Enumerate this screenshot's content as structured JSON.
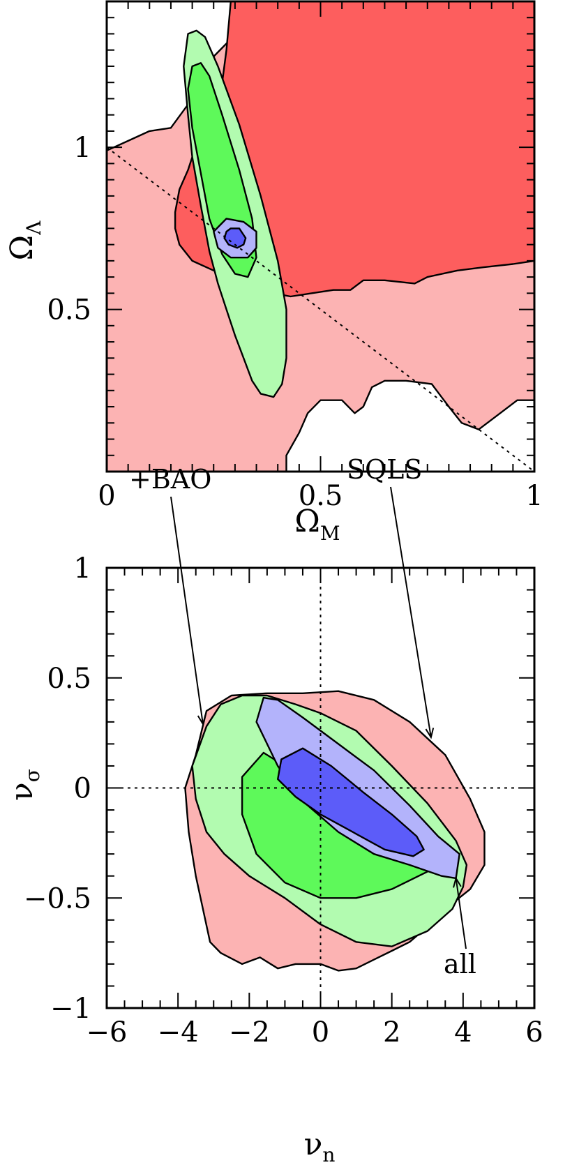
{
  "colors": {
    "red_light": "#fcb3b3",
    "red_dark": "#fd5e5e",
    "green_light": "#b2fbb0",
    "green_dark": "#5ef95a",
    "blue_light": "#b3b3fb",
    "blue_dark": "#5c5cf9"
  },
  "chart_data": [
    {
      "type": "contour",
      "xlabel": "Ω",
      "xlabel_sub": "M",
      "ylabel": "Ω",
      "ylabel_sub": "Λ",
      "xlim": [
        0,
        1
      ],
      "ylim": [
        0,
        1.45
      ],
      "xticks": [
        0,
        0.5,
        1
      ],
      "xtick_labels": [
        "0",
        "0.5",
        "1"
      ],
      "yticks": [
        0.5,
        1
      ],
      "ytick_labels": [
        "0.5",
        "1"
      ],
      "reference_lines": [
        {
          "style": "dotted",
          "from": [
            0,
            1
          ],
          "to": [
            1,
            0
          ]
        }
      ],
      "series": [
        {
          "color": "#fcb3b3",
          "level": "outer",
          "points": [
            [
              0.0,
              0.0
            ],
            [
              0.42,
              0.0
            ],
            [
              0.42,
              0.05
            ],
            [
              0.45,
              0.12
            ],
            [
              0.47,
              0.18
            ],
            [
              0.5,
              0.22
            ],
            [
              0.55,
              0.22
            ],
            [
              0.58,
              0.18
            ],
            [
              0.6,
              0.2
            ],
            [
              0.62,
              0.26
            ],
            [
              0.65,
              0.28
            ],
            [
              0.7,
              0.28
            ],
            [
              0.76,
              0.27
            ],
            [
              0.8,
              0.2
            ],
            [
              0.83,
              0.15
            ],
            [
              0.87,
              0.13
            ],
            [
              0.92,
              0.18
            ],
            [
              0.96,
              0.22
            ],
            [
              1.0,
              0.22
            ],
            [
              1.0,
              1.45
            ],
            [
              0.45,
              1.45
            ],
            [
              0.43,
              1.43
            ],
            [
              0.35,
              1.4
            ],
            [
              0.28,
              1.32
            ],
            [
              0.25,
              1.28
            ],
            [
              0.22,
              1.22
            ],
            [
              0.2,
              1.15
            ],
            [
              0.15,
              1.06
            ],
            [
              0.1,
              1.05
            ],
            [
              0.05,
              1.02
            ],
            [
              0.0,
              0.99
            ]
          ]
        },
        {
          "color": "#fd5e5e",
          "level": "inner",
          "points": [
            [
              0.29,
              1.45
            ],
            [
              1.0,
              1.45
            ],
            [
              1.0,
              0.65
            ],
            [
              0.95,
              0.64
            ],
            [
              0.88,
              0.63
            ],
            [
              0.82,
              0.62
            ],
            [
              0.75,
              0.6
            ],
            [
              0.72,
              0.58
            ],
            [
              0.65,
              0.59
            ],
            [
              0.6,
              0.59
            ],
            [
              0.57,
              0.56
            ],
            [
              0.53,
              0.56
            ],
            [
              0.48,
              0.55
            ],
            [
              0.43,
              0.54
            ],
            [
              0.39,
              0.55
            ],
            [
              0.35,
              0.57
            ],
            [
              0.3,
              0.6
            ],
            [
              0.25,
              0.62
            ],
            [
              0.2,
              0.65
            ],
            [
              0.17,
              0.7
            ],
            [
              0.16,
              0.75
            ],
            [
              0.16,
              0.8
            ],
            [
              0.17,
              0.87
            ],
            [
              0.19,
              0.93
            ],
            [
              0.2,
              0.97
            ],
            [
              0.22,
              1.0
            ],
            [
              0.25,
              1.1
            ],
            [
              0.27,
              1.2
            ],
            [
              0.28,
              1.3
            ]
          ]
        },
        {
          "color": "#b2fbb0",
          "level": "outer",
          "points": [
            [
              0.19,
              1.35
            ],
            [
              0.21,
              1.36
            ],
            [
              0.23,
              1.34
            ],
            [
              0.26,
              1.25
            ],
            [
              0.31,
              1.07
            ],
            [
              0.36,
              0.85
            ],
            [
              0.4,
              0.65
            ],
            [
              0.42,
              0.5
            ],
            [
              0.42,
              0.35
            ],
            [
              0.41,
              0.27
            ],
            [
              0.39,
              0.23
            ],
            [
              0.36,
              0.24
            ],
            [
              0.34,
              0.28
            ],
            [
              0.32,
              0.35
            ],
            [
              0.3,
              0.42
            ],
            [
              0.28,
              0.5
            ],
            [
              0.26,
              0.58
            ],
            [
              0.24,
              0.68
            ],
            [
              0.22,
              0.82
            ],
            [
              0.2,
              0.97
            ],
            [
              0.19,
              1.1
            ],
            [
              0.18,
              1.25
            ]
          ]
        },
        {
          "color": "#5ef95a",
          "level": "inner",
          "points": [
            [
              0.2,
              1.25
            ],
            [
              0.22,
              1.26
            ],
            [
              0.24,
              1.22
            ],
            [
              0.27,
              1.1
            ],
            [
              0.31,
              0.93
            ],
            [
              0.34,
              0.78
            ],
            [
              0.35,
              0.66
            ],
            [
              0.33,
              0.6
            ],
            [
              0.3,
              0.61
            ],
            [
              0.27,
              0.67
            ],
            [
              0.24,
              0.78
            ],
            [
              0.22,
              0.92
            ],
            [
              0.2,
              1.06
            ],
            [
              0.19,
              1.18
            ]
          ]
        },
        {
          "color": "#b3b3fb",
          "level": "outer",
          "points": [
            [
              0.28,
              0.78
            ],
            [
              0.32,
              0.77
            ],
            [
              0.35,
              0.74
            ],
            [
              0.35,
              0.69
            ],
            [
              0.33,
              0.66
            ],
            [
              0.29,
              0.66
            ],
            [
              0.26,
              0.69
            ],
            [
              0.25,
              0.74
            ]
          ]
        },
        {
          "color": "#5c5cf9",
          "level": "inner",
          "points": [
            [
              0.29,
              0.75
            ],
            [
              0.31,
              0.75
            ],
            [
              0.325,
              0.72
            ],
            [
              0.32,
              0.7
            ],
            [
              0.305,
              0.69
            ],
            [
              0.285,
              0.7
            ],
            [
              0.275,
              0.72
            ],
            [
              0.28,
              0.74
            ]
          ]
        }
      ]
    },
    {
      "type": "contour",
      "xlabel": "ν",
      "xlabel_sub": "n",
      "ylabel": "ν",
      "ylabel_sub": "σ",
      "xlim": [
        -6,
        6
      ],
      "ylim": [
        -1,
        1
      ],
      "xticks": [
        -6,
        -4,
        -2,
        0,
        2,
        4,
        6
      ],
      "xtick_labels": [
        "−6",
        "−4",
        "−2",
        "0",
        "2",
        "4",
        "6"
      ],
      "yticks": [
        -1,
        -0.5,
        0,
        0.5,
        1
      ],
      "ytick_labels": [
        "−1",
        "−0.5",
        "0",
        "0.5",
        "1"
      ],
      "reference_lines": [
        {
          "style": "dotted",
          "from": [
            0,
            -1
          ],
          "to": [
            0,
            1
          ]
        },
        {
          "style": "dotted",
          "from": [
            -6,
            0
          ],
          "to": [
            6,
            0
          ]
        }
      ],
      "annotations": [
        {
          "text": "+BAO",
          "arrow_to": [
            -3.3,
            0.29
          ]
        },
        {
          "text": "SQLS",
          "arrow_to": [
            3.1,
            0.23
          ]
        },
        {
          "text": "all",
          "arrow_to": [
            3.8,
            -0.41
          ]
        }
      ],
      "series": [
        {
          "name": "SQLS",
          "color": "#fcb3b3",
          "level": "outer",
          "points": [
            [
              -3.5,
              0.15
            ],
            [
              -3.2,
              0.35
            ],
            [
              -2.5,
              0.42
            ],
            [
              -1.5,
              0.43
            ],
            [
              -0.5,
              0.43
            ],
            [
              0.5,
              0.44
            ],
            [
              1.5,
              0.4
            ],
            [
              2.5,
              0.3
            ],
            [
              3.5,
              0.15
            ],
            [
              4.2,
              -0.05
            ],
            [
              4.6,
              -0.2
            ],
            [
              4.6,
              -0.35
            ],
            [
              4.2,
              -0.46
            ],
            [
              3.5,
              -0.55
            ],
            [
              3.0,
              -0.63
            ],
            [
              2.5,
              -0.7
            ],
            [
              2.0,
              -0.74
            ],
            [
              1.5,
              -0.78
            ],
            [
              1.0,
              -0.82
            ],
            [
              0.5,
              -0.83
            ],
            [
              0.0,
              -0.8
            ],
            [
              -0.7,
              -0.8
            ],
            [
              -1.2,
              -0.82
            ],
            [
              -1.7,
              -0.77
            ],
            [
              -2.2,
              -0.8
            ],
            [
              -2.8,
              -0.75
            ],
            [
              -3.1,
              -0.7
            ],
            [
              -3.3,
              -0.55
            ],
            [
              -3.5,
              -0.4
            ],
            [
              -3.7,
              -0.2
            ],
            [
              -3.8,
              0.0
            ]
          ]
        },
        {
          "name": "+BAO",
          "color": "#b2fbb0",
          "level": "outer",
          "points": [
            [
              -3.2,
              0.28
            ],
            [
              -2.8,
              0.38
            ],
            [
              -2.2,
              0.42
            ],
            [
              -1.5,
              0.42
            ],
            [
              -0.7,
              0.38
            ],
            [
              0.0,
              0.34
            ],
            [
              1.0,
              0.26
            ],
            [
              2.0,
              0.1
            ],
            [
              3.0,
              -0.07
            ],
            [
              3.8,
              -0.24
            ],
            [
              4.1,
              -0.35
            ],
            [
              4.0,
              -0.45
            ],
            [
              3.7,
              -0.55
            ],
            [
              3.0,
              -0.65
            ],
            [
              2.0,
              -0.72
            ],
            [
              1.0,
              -0.7
            ],
            [
              0.0,
              -0.62
            ],
            [
              -1.0,
              -0.5
            ],
            [
              -2.0,
              -0.4
            ],
            [
              -2.7,
              -0.3
            ],
            [
              -3.2,
              -0.2
            ],
            [
              -3.5,
              -0.05
            ],
            [
              -3.6,
              0.1
            ]
          ]
        },
        {
          "color": "#5ef95a",
          "level": "inner",
          "points": [
            [
              -1.6,
              0.16
            ],
            [
              -1.0,
              0.1
            ],
            [
              0.0,
              0.0
            ],
            [
              1.0,
              -0.1
            ],
            [
              2.0,
              -0.2
            ],
            [
              3.0,
              -0.3
            ],
            [
              3.0,
              -0.38
            ],
            [
              2.0,
              -0.46
            ],
            [
              1.0,
              -0.5
            ],
            [
              0.0,
              -0.5
            ],
            [
              -1.0,
              -0.43
            ],
            [
              -1.8,
              -0.3
            ],
            [
              -2.2,
              -0.12
            ],
            [
              -2.2,
              0.05
            ]
          ]
        },
        {
          "name": "all",
          "color": "#b3b3fb",
          "level": "outer",
          "points": [
            [
              -1.6,
              0.41
            ],
            [
              -1.2,
              0.4
            ],
            [
              -0.5,
              0.32
            ],
            [
              0.5,
              0.2
            ],
            [
              1.5,
              0.08
            ],
            [
              2.5,
              -0.08
            ],
            [
              3.3,
              -0.22
            ],
            [
              3.9,
              -0.3
            ],
            [
              3.8,
              -0.41
            ],
            [
              3.4,
              -0.4
            ],
            [
              2.5,
              -0.35
            ],
            [
              1.5,
              -0.3
            ],
            [
              0.5,
              -0.2
            ],
            [
              -0.5,
              -0.06
            ],
            [
              -1.2,
              0.1
            ],
            [
              -1.8,
              0.3
            ]
          ]
        },
        {
          "color": "#5c5cf9",
          "level": "inner",
          "points": [
            [
              -1.1,
              0.13
            ],
            [
              -0.5,
              0.18
            ],
            [
              0.3,
              0.1
            ],
            [
              1.2,
              -0.02
            ],
            [
              2.0,
              -0.12
            ],
            [
              2.7,
              -0.22
            ],
            [
              2.9,
              -0.28
            ],
            [
              2.6,
              -0.31
            ],
            [
              1.8,
              -0.28
            ],
            [
              0.9,
              -0.2
            ],
            [
              0.0,
              -0.12
            ],
            [
              -0.7,
              -0.04
            ],
            [
              -1.2,
              0.04
            ]
          ]
        }
      ]
    }
  ]
}
